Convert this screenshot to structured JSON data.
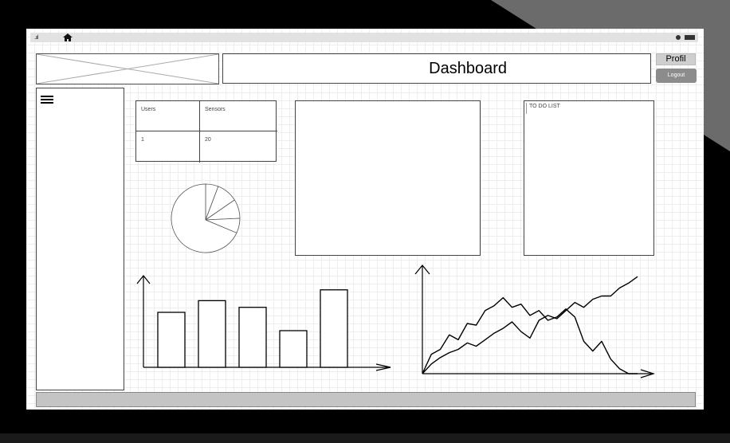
{
  "header": {
    "title": "Dashboard",
    "profil_label": "Profil",
    "logout_label": "Logout"
  },
  "status_bar": {
    "signal": "..ııl"
  },
  "stats_table": {
    "headers": [
      "Users",
      "Sensors"
    ],
    "values": [
      "1",
      "20"
    ]
  },
  "todo": {
    "label": "TO DO LIST"
  },
  "icons": {
    "signal": "signal-icon",
    "home": "home-icon",
    "help": "help-icon",
    "battery": "battery-icon",
    "menu": "hamburger-menu-icon",
    "logo": "image-placeholder-icon"
  },
  "chart_data": [
    {
      "type": "pie",
      "values": [
        6,
        10,
        9,
        7,
        68
      ]
    },
    {
      "type": "bar",
      "categories": [
        "",
        "",
        "",
        "",
        ""
      ],
      "values": [
        66,
        80,
        72,
        44,
        93
      ],
      "ylim": [
        0,
        110
      ]
    },
    {
      "type": "line",
      "x": [
        0,
        1,
        2,
        3,
        4,
        5,
        6,
        7,
        8,
        9,
        10,
        11,
        12,
        13,
        14,
        15,
        16,
        17,
        18,
        19,
        20,
        21,
        22,
        23,
        24
      ],
      "series": [
        {
          "values": [
            0,
            24,
            30,
            48,
            42,
            62,
            60,
            78,
            84,
            94,
            82,
            86,
            72,
            78,
            66,
            70,
            80,
            70,
            40,
            28,
            40,
            18,
            6,
            0,
            0
          ]
        },
        {
          "values": [
            0,
            12,
            20,
            26,
            30,
            38,
            34,
            42,
            50,
            56,
            64,
            52,
            44,
            66,
            72,
            68,
            78,
            88,
            82,
            92,
            96,
            96,
            106,
            112,
            120
          ]
        }
      ],
      "ylim": [
        0,
        130
      ]
    }
  ]
}
